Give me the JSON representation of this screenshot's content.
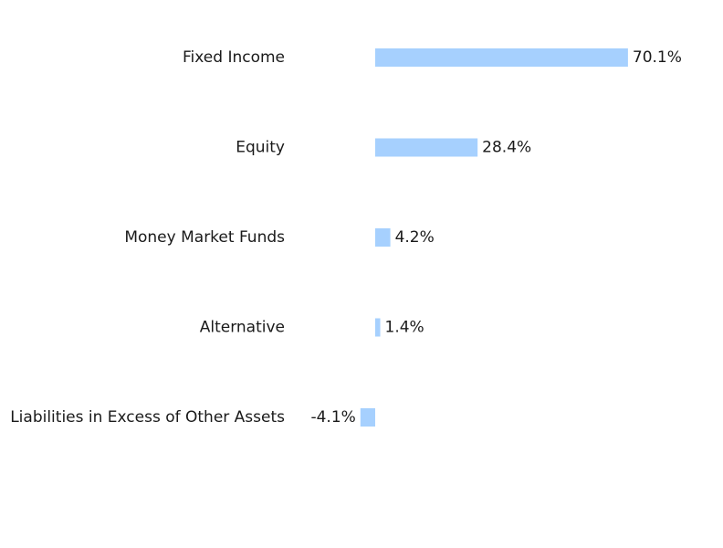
{
  "chart_data": {
    "type": "bar",
    "orientation": "horizontal",
    "categories": [
      "Fixed Income",
      "Equity",
      "Money Market Funds",
      "Alternative",
      "Liabilities in Excess of Other Assets"
    ],
    "values": [
      70.1,
      28.4,
      4.2,
      1.4,
      -4.1
    ],
    "value_labels": [
      "70.1%",
      "28.4%",
      "4.2%",
      "1.4%",
      "-4.1%"
    ],
    "unit": "%",
    "bar_color": "#a6d0fe",
    "grid": false,
    "axes_visible": false
  }
}
